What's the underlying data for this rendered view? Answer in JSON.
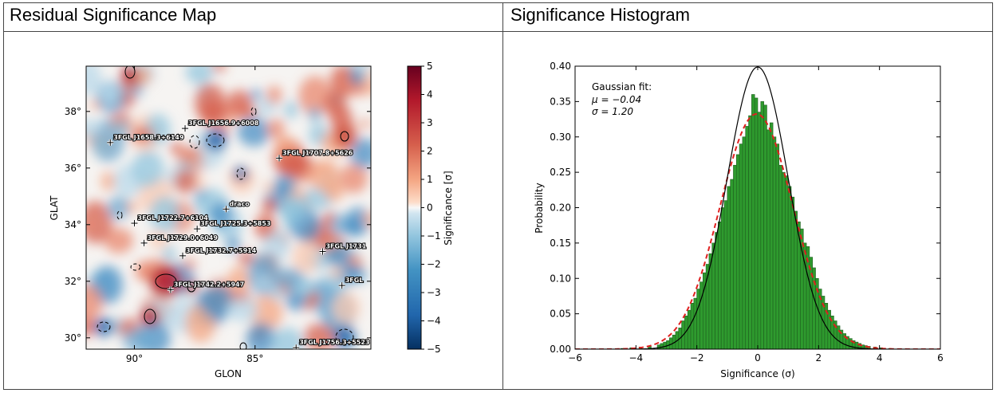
{
  "panels": {
    "left_title": "Residual Significance Map",
    "right_title": "Significance Histogram"
  },
  "chart_data": [
    {
      "type": "heatmap",
      "title": "",
      "xlabel": "GLON",
      "ylabel": "GLAT",
      "x_ticks": [
        "90°",
        "85°"
      ],
      "y_ticks": [
        "38°",
        "36°",
        "34°",
        "32°",
        "30°"
      ],
      "colorbar": {
        "label": "Significance [σ]",
        "range": [
          -5,
          5
        ],
        "ticks": [
          "5",
          "4",
          "3",
          "2",
          "1",
          "0",
          "−1",
          "−2",
          "−3",
          "−4",
          "−5"
        ],
        "colormap": "RdBu_r",
        "colors": {
          "low": "#0b3d7e",
          "mid": "#f7f7f7",
          "high": "#7a0a1e"
        }
      },
      "sources": [
        {
          "name": "3FGL J1656.9+6008",
          "glon": 87.9,
          "glat": 37.4
        },
        {
          "name": "3FGL J1658.3+6149",
          "glon": 91.0,
          "glat": 36.9
        },
        {
          "name": "3FGL J1707.8+5626",
          "glon": 84.0,
          "glat": 36.35
        },
        {
          "name": "draco",
          "glon": 86.2,
          "glat": 34.55
        },
        {
          "name": "3FGL J1722.7+6104",
          "glon": 90.0,
          "glat": 34.05
        },
        {
          "name": "3FGL J1725.3+5853",
          "glon": 87.4,
          "glat": 33.85
        },
        {
          "name": "3FGL J1729.0+6049",
          "glon": 89.6,
          "glat": 33.35
        },
        {
          "name": "3FGL J1732.7+5914",
          "glon": 88.0,
          "glat": 32.9
        },
        {
          "name": "3FGL J1731",
          "glon": 82.2,
          "glat": 33.05
        },
        {
          "name": "3FGL J1742.2+5947",
          "glon": 88.5,
          "glat": 31.7
        },
        {
          "name": "3FGL",
          "glon": 81.4,
          "glat": 31.85
        },
        {
          "name": "3FGL J1756.3+5523",
          "glon": 83.3,
          "glat": 29.65
        }
      ]
    },
    {
      "type": "bar",
      "title": "",
      "xlabel": "Significance (σ)",
      "ylabel": "Probability",
      "xlim": [
        -6,
        6
      ],
      "ylim": [
        0,
        0.4
      ],
      "x_ticks": [
        "−6",
        "−4",
        "−2",
        "0",
        "2",
        "4",
        "6"
      ],
      "y_ticks": [
        "0.40",
        "0.35",
        "0.30",
        "0.25",
        "0.20",
        "0.15",
        "0.10",
        "0.05",
        "0.00"
      ],
      "annotation": [
        "Gaussian fit:",
        "μ = −0.04",
        "σ = 1.20"
      ],
      "histogram": {
        "bin_width": 0.1,
        "color": "#2e9a2e",
        "bins": [
          [
            -4.5,
            0.001
          ],
          [
            -4.2,
            0.002
          ],
          [
            -3.9,
            0.003
          ],
          [
            -3.6,
            0.004
          ],
          [
            -3.3,
            0.006
          ],
          [
            -3.2,
            0.008
          ],
          [
            -3.1,
            0.01
          ],
          [
            -3.0,
            0.012
          ],
          [
            -2.9,
            0.016
          ],
          [
            -2.8,
            0.02
          ],
          [
            -2.7,
            0.025
          ],
          [
            -2.6,
            0.03
          ],
          [
            -2.5,
            0.04
          ],
          [
            -2.4,
            0.047
          ],
          [
            -2.3,
            0.055
          ],
          [
            -2.2,
            0.065
          ],
          [
            -2.1,
            0.072
          ],
          [
            -2.0,
            0.085
          ],
          [
            -1.9,
            0.095
          ],
          [
            -1.8,
            0.108
          ],
          [
            -1.7,
            0.12
          ],
          [
            -1.6,
            0.135
          ],
          [
            -1.5,
            0.15
          ],
          [
            -1.4,
            0.165
          ],
          [
            -1.3,
            0.18
          ],
          [
            -1.2,
            0.2
          ],
          [
            -1.1,
            0.21
          ],
          [
            -1.0,
            0.23
          ],
          [
            -0.9,
            0.24
          ],
          [
            -0.8,
            0.26
          ],
          [
            -0.7,
            0.275
          ],
          [
            -0.6,
            0.29
          ],
          [
            -0.5,
            0.3
          ],
          [
            -0.4,
            0.315
          ],
          [
            -0.3,
            0.33
          ],
          [
            -0.2,
            0.36
          ],
          [
            -0.1,
            0.355
          ],
          [
            0.0,
            0.335
          ],
          [
            0.1,
            0.35
          ],
          [
            0.2,
            0.345
          ],
          [
            0.3,
            0.31
          ],
          [
            0.4,
            0.32
          ],
          [
            0.5,
            0.3
          ],
          [
            0.6,
            0.29
          ],
          [
            0.7,
            0.26
          ],
          [
            0.8,
            0.25
          ],
          [
            0.9,
            0.245
          ],
          [
            1.0,
            0.23
          ],
          [
            1.1,
            0.215
          ],
          [
            1.2,
            0.195
          ],
          [
            1.3,
            0.18
          ],
          [
            1.4,
            0.17
          ],
          [
            1.5,
            0.15
          ],
          [
            1.6,
            0.145
          ],
          [
            1.7,
            0.13
          ],
          [
            1.8,
            0.115
          ],
          [
            1.9,
            0.1
          ],
          [
            2.0,
            0.085
          ],
          [
            2.1,
            0.075
          ],
          [
            2.2,
            0.065
          ],
          [
            2.3,
            0.055
          ],
          [
            2.4,
            0.047
          ],
          [
            2.5,
            0.04
          ],
          [
            2.6,
            0.033
          ],
          [
            2.7,
            0.027
          ],
          [
            2.8,
            0.022
          ],
          [
            2.9,
            0.018
          ],
          [
            3.0,
            0.015
          ],
          [
            3.1,
            0.012
          ],
          [
            3.2,
            0.01
          ],
          [
            3.3,
            0.008
          ],
          [
            3.4,
            0.006
          ],
          [
            3.5,
            0.005
          ],
          [
            3.6,
            0.004
          ],
          [
            3.8,
            0.003
          ],
          [
            4.0,
            0.002
          ],
          [
            4.3,
            0.001
          ]
        ]
      },
      "curves": [
        {
          "label": "Gaussian fit",
          "mu": -0.04,
          "sigma": 1.2,
          "color": "#e02020",
          "style": "dashed"
        },
        {
          "mu": 0.0,
          "sigma": 1.0,
          "color": "#000000",
          "style": "solid"
        }
      ]
    }
  ]
}
